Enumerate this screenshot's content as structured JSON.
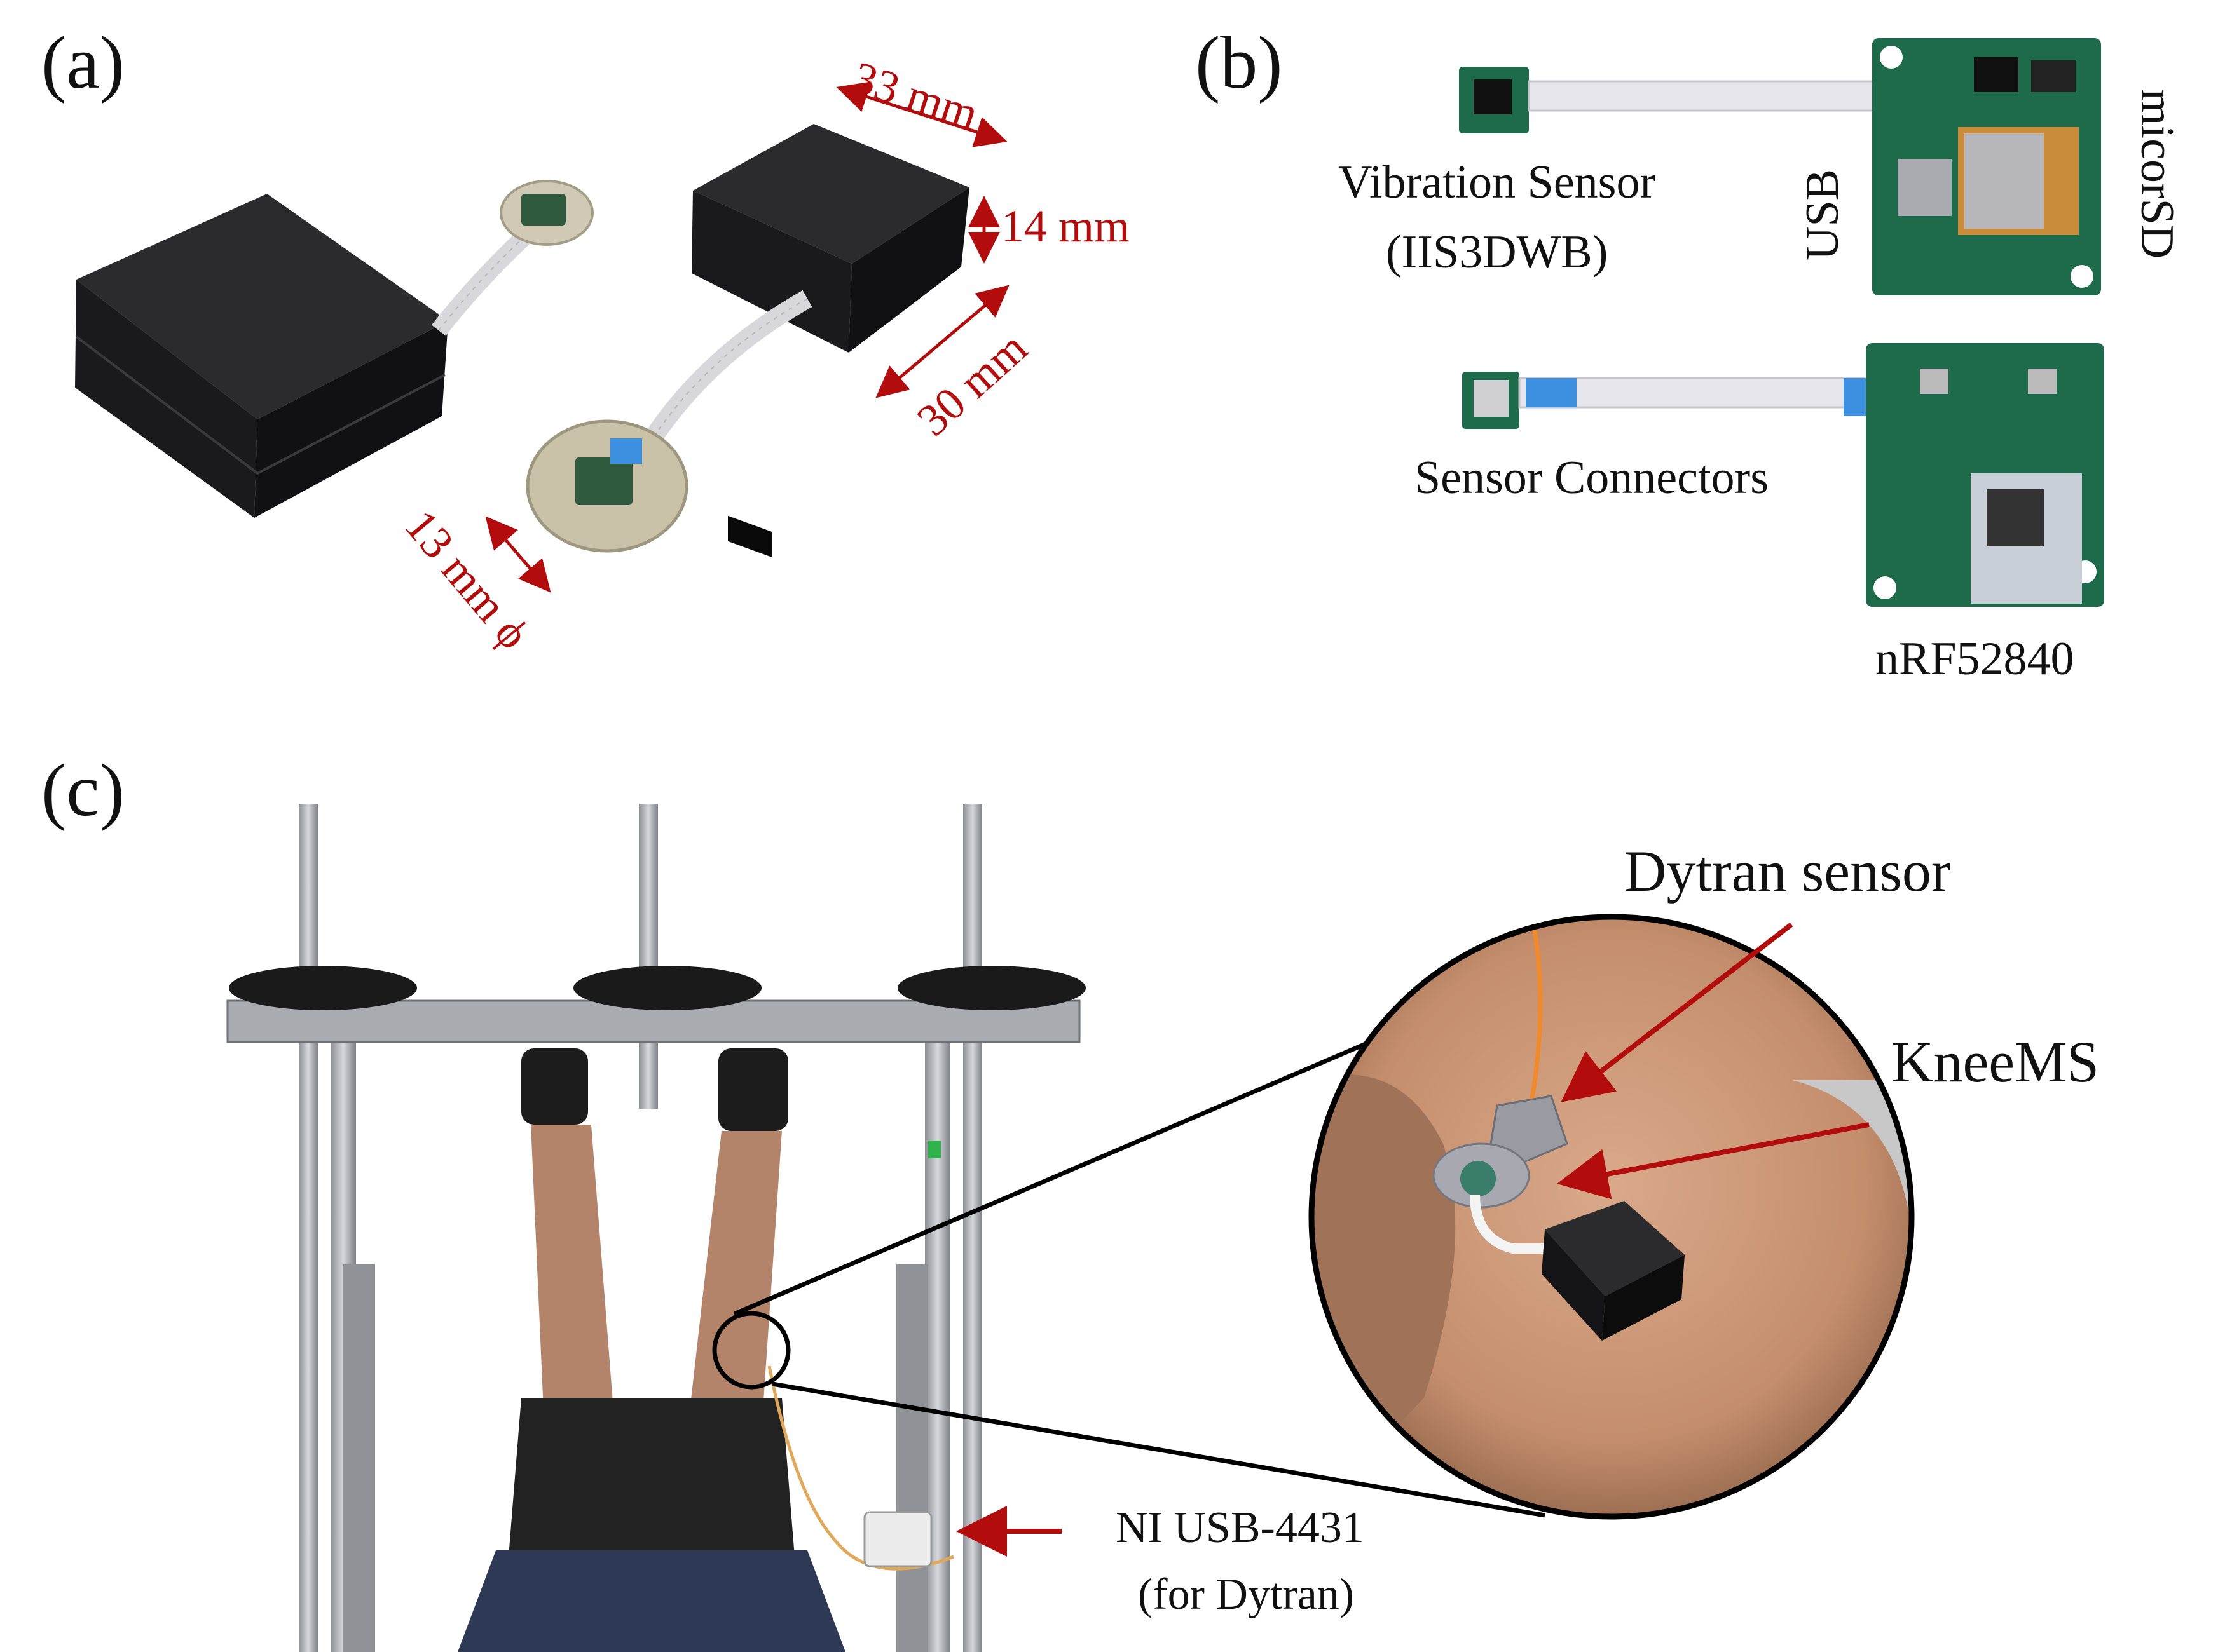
{
  "panels": {
    "a": {
      "label": "(a)",
      "dimensions": {
        "length": "33 mm",
        "height": "14 mm",
        "width": "30 mm",
        "diameter": "13 mm ϕ"
      }
    },
    "b": {
      "label": "(b)",
      "labels": {
        "vibration_sensor_line1": "Vibration Sensor",
        "vibration_sensor_line2": "(IIS3DWB)",
        "usb": "USB",
        "microsd": "micorSD",
        "sensor_connectors": "Sensor Connectors",
        "nrf": "nRF52840"
      }
    },
    "c": {
      "label": "(c)",
      "labels": {
        "dytran": "Dytran sensor",
        "kneems": "KneeMS",
        "ni_line1": "NI USB-4431",
        "ni_line2": "(for Dytran)"
      }
    }
  },
  "colors": {
    "accent_red": "#b30c0c",
    "device_black": "#1c1c1e",
    "pcb_green": "#1d6b4a"
  }
}
